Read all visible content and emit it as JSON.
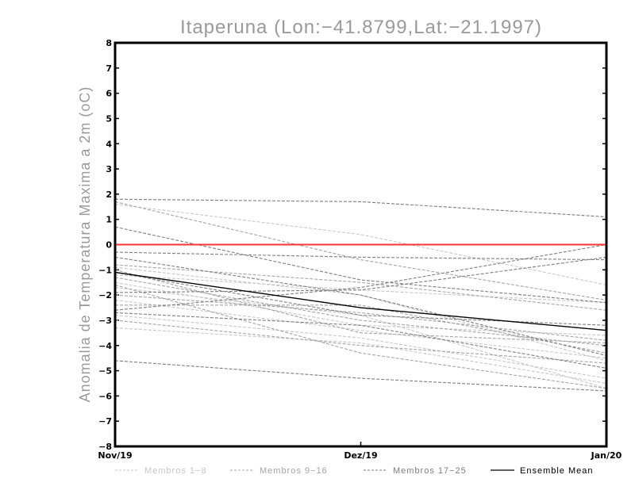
{
  "chart_data": {
    "type": "line",
    "title": "Itaperuna (Lon:−41.8799,Lat:−21.1997)",
    "xlabel": "",
    "ylabel": "Anomalia de Temperatura Maxima a 2m (oC)",
    "categories": [
      "Nov/19",
      "Dez/19",
      "Jan/20"
    ],
    "ylim": [
      -8,
      8
    ],
    "yticks": [
      "−8",
      "−7",
      "−6",
      "−5",
      "−4",
      "−3",
      "−2",
      "−1",
      "0",
      "1",
      "2",
      "3",
      "4",
      "5",
      "6",
      "7",
      "8"
    ],
    "grid": false,
    "legend_position": "bottom",
    "reference_line": {
      "y": 0,
      "color": "#ff3333"
    },
    "groups": [
      {
        "name": "Membros 1-8",
        "color": "#c8c8c8"
      },
      {
        "name": "Membros 9-16",
        "color": "#a5a5a5"
      },
      {
        "name": "Membros 17-25",
        "color": "#7e7e7e"
      },
      {
        "name": "Ensemble Mean",
        "color": "#000000"
      }
    ],
    "series": [
      {
        "group": 0,
        "values": [
          1.6,
          0.4,
          -1.6
        ]
      },
      {
        "group": 0,
        "values": [
          -1.2,
          -1.8,
          -2.3
        ]
      },
      {
        "group": 0,
        "values": [
          -1.5,
          -3.2,
          -3.6
        ]
      },
      {
        "group": 0,
        "values": [
          -2.2,
          -3.4,
          -4.5
        ]
      },
      {
        "group": 0,
        "values": [
          -2.8,
          -3.7,
          -5.3
        ]
      },
      {
        "group": 0,
        "values": [
          -3.3,
          -3.9,
          -5.5
        ]
      },
      {
        "group": 0,
        "values": [
          -0.9,
          -2.0,
          -4.6
        ]
      },
      {
        "group": 0,
        "values": [
          -1.7,
          -2.8,
          -5.7
        ]
      },
      {
        "group": 1,
        "values": [
          1.7,
          -0.6,
          -2.2
        ]
      },
      {
        "group": 1,
        "values": [
          -1.3,
          -3.0,
          -4.0
        ]
      },
      {
        "group": 1,
        "values": [
          -2.0,
          -2.7,
          -3.8
        ]
      },
      {
        "group": 1,
        "values": [
          -0.8,
          -1.5,
          -2.6
        ]
      },
      {
        "group": 1,
        "values": [
          -1.6,
          -4.3,
          -5.7
        ]
      },
      {
        "group": 1,
        "values": [
          -2.4,
          -2.4,
          -4.3
        ]
      },
      {
        "group": 1,
        "values": [
          -1.0,
          -3.5,
          -3.9
        ]
      },
      {
        "group": 1,
        "values": [
          -3.0,
          -4.0,
          -4.7
        ]
      },
      {
        "group": 2,
        "values": [
          1.8,
          1.7,
          1.1
        ]
      },
      {
        "group": 2,
        "values": [
          0.7,
          -1.4,
          -2.3
        ]
      },
      {
        "group": 2,
        "values": [
          -0.3,
          -0.5,
          -0.6
        ]
      },
      {
        "group": 2,
        "values": [
          -0.5,
          -2.0,
          -4.4
        ]
      },
      {
        "group": 2,
        "values": [
          -1.9,
          -1.8,
          -0.5
        ]
      },
      {
        "group": 2,
        "values": [
          -2.6,
          -1.7,
          0.0
        ]
      },
      {
        "group": 2,
        "values": [
          -1.1,
          -2.8,
          -3.2
        ]
      },
      {
        "group": 2,
        "values": [
          -2.7,
          -3.2,
          -4.9
        ]
      },
      {
        "group": 2,
        "values": [
          -4.6,
          -5.3,
          -5.8
        ]
      }
    ],
    "mean": [
      -1.1,
      -2.5,
      -3.4
    ]
  }
}
